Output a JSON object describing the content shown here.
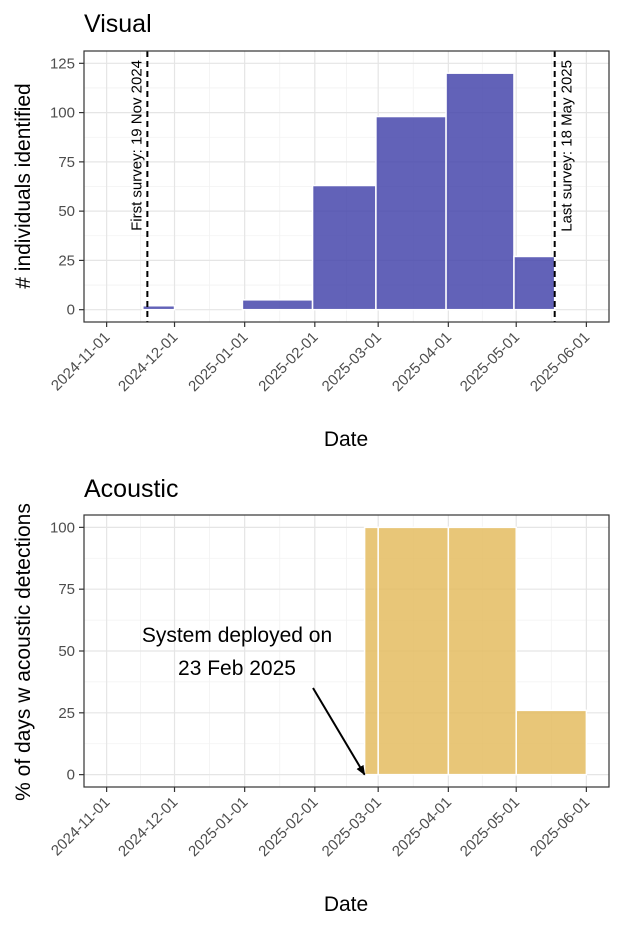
{
  "chart_data": [
    {
      "type": "bar",
      "title": "Visual",
      "xlabel": "Date",
      "ylabel": "# individuals identified",
      "ylim": [
        -6.25,
        131.25
      ],
      "yticks": [
        0,
        25,
        50,
        75,
        100,
        125
      ],
      "xlim": [
        "2024-10-22",
        "2025-06-11"
      ],
      "xticks": [
        "2024-11-01",
        "2024-12-01",
        "2025-01-01",
        "2025-02-01",
        "2025-03-01",
        "2025-04-01",
        "2025-05-01",
        "2025-06-01"
      ],
      "bar_color": "#4040a8",
      "bars": [
        {
          "start": "2024-11-17",
          "end": "2024-12-01",
          "value": 2
        },
        {
          "start": "2024-12-01",
          "end": "2024-12-31",
          "value": 0
        },
        {
          "start": "2024-12-31",
          "end": "2025-01-31",
          "value": 5
        },
        {
          "start": "2025-01-31",
          "end": "2025-02-28",
          "value": 63
        },
        {
          "start": "2025-02-28",
          "end": "2025-03-31",
          "value": 98
        },
        {
          "start": "2025-03-31",
          "end": "2025-04-30",
          "value": 120
        },
        {
          "start": "2025-04-30",
          "end": "2025-05-18",
          "value": 27
        }
      ],
      "vlines": [
        {
          "date": "2024-11-19",
          "label": "First survey: 19 Nov 2024",
          "side": "left"
        },
        {
          "date": "2025-05-18",
          "label": "Last survey: 18 May 2025",
          "side": "right"
        }
      ]
    },
    {
      "type": "bar",
      "title": "Acoustic",
      "xlabel": "Date",
      "ylabel": "% of days w acoustic detections",
      "ylim": [
        -5,
        105
      ],
      "yticks": [
        0,
        25,
        50,
        75,
        100
      ],
      "xlim": [
        "2024-10-22",
        "2025-06-11"
      ],
      "xticks": [
        "2024-11-01",
        "2024-12-01",
        "2025-01-01",
        "2025-02-01",
        "2025-03-01",
        "2025-04-01",
        "2025-05-01",
        "2025-06-01"
      ],
      "bar_color": "#e3b95a",
      "bars": [
        {
          "start": "2025-02-23",
          "end": "2025-03-01",
          "value": 100
        },
        {
          "start": "2025-03-01",
          "end": "2025-04-01",
          "value": 100
        },
        {
          "start": "2025-04-01",
          "end": "2025-05-01",
          "value": 100
        },
        {
          "start": "2025-05-01",
          "end": "2025-06-01",
          "value": 26
        }
      ],
      "annotation": {
        "line1": "System deployed on",
        "line2": "23 Feb 2025",
        "target_date": "2025-02-23",
        "target_value": 0
      }
    }
  ]
}
